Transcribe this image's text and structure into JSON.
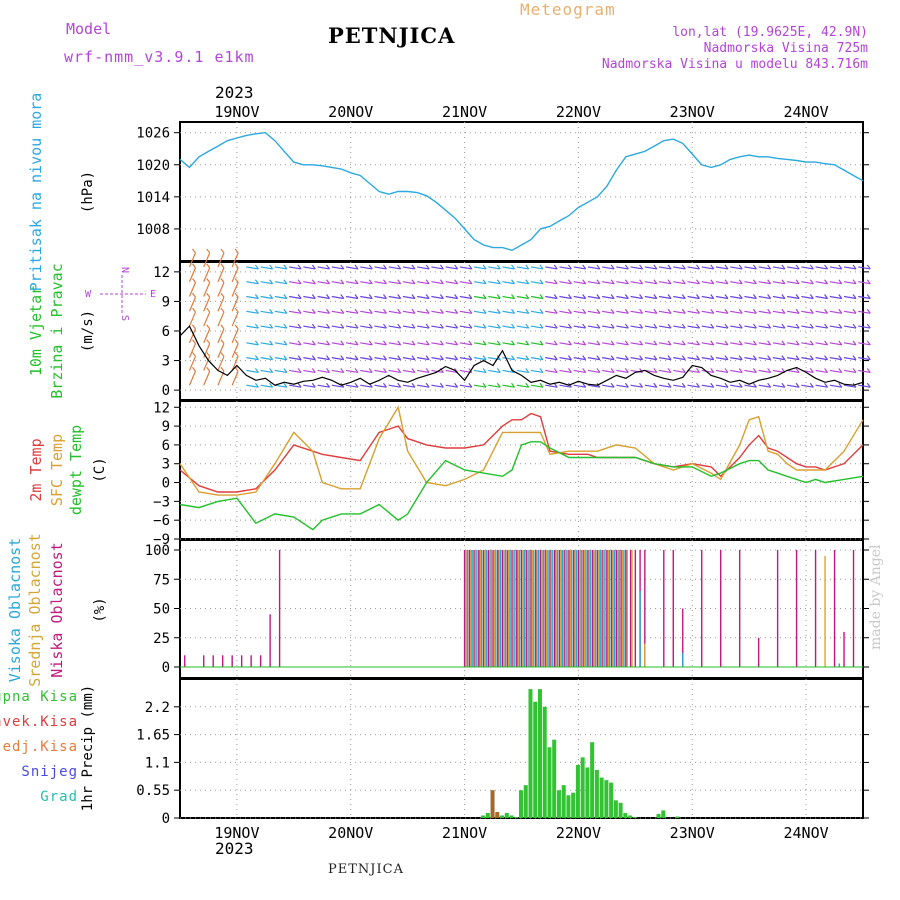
{
  "header": {
    "model_label": "Model",
    "model_name": "wrf-nmm_v3.9.1 e1km",
    "title": "PETNJICA",
    "meteogram": "Meteogram",
    "lonlat": "lon,lat (19.9625E, 42.9N)",
    "altitude": "Nadmorska Visina 725m",
    "altitude_model": "Nadmorska Visina u modelu 843.716m",
    "year": "2023",
    "footer": "PETNJICA",
    "credit": "made by Angel"
  },
  "colors": {
    "pressure": "#2aa8e0",
    "temp2m": "#e03c3c",
    "sfc": "#d9a030",
    "dew": "#22c02a",
    "niska": "#c0187e",
    "srednja": "#d4a636",
    "visoka": "#29a6d8",
    "precip": "#31c331",
    "zaledj": "#a0702a",
    "purple": "#b444d8",
    "brown": "#a26a2a"
  },
  "chart_data": [
    {
      "type": "line",
      "panel": "pressure",
      "ylabel": "Pritisak na nivou mora",
      "unit": "(hPa)",
      "x_unit": "hours since 18NOV 12:00",
      "yticks": [
        1008,
        1014,
        1020,
        1026
      ],
      "ylim": [
        1002,
        1028
      ],
      "series": [
        {
          "name": "Pritisak na nivou mora",
          "x": [
            0,
            2,
            4,
            6,
            8,
            10,
            12,
            14,
            16,
            18,
            20,
            22,
            24,
            26,
            28,
            30,
            32,
            34,
            36,
            38,
            40,
            42,
            44,
            46,
            48,
            50,
            52,
            54,
            56,
            58,
            60,
            62,
            64,
            66,
            68,
            70,
            72,
            74,
            76,
            78,
            80,
            82,
            84,
            86,
            88,
            90,
            92,
            94,
            96,
            98,
            100,
            102,
            104,
            106,
            108,
            110,
            112,
            114,
            116,
            118,
            120,
            122,
            124,
            126,
            128,
            130,
            132,
            134,
            136,
            138,
            140,
            142,
            144
          ],
          "values": [
            1021,
            1019.5,
            1021.5,
            1022.5,
            1023.5,
            1024.5,
            1025,
            1025.5,
            1025.8,
            1026,
            1024.5,
            1022.5,
            1020.5,
            1020,
            1020,
            1019.8,
            1019.5,
            1019.2,
            1018.5,
            1018,
            1016.5,
            1015,
            1014.5,
            1015,
            1015,
            1014.8,
            1014.2,
            1013,
            1011.5,
            1010,
            1008,
            1006,
            1005,
            1004.5,
            1004.5,
            1004,
            1005,
            1006,
            1008,
            1008.5,
            1009.5,
            1010.5,
            1012,
            1013,
            1014,
            1016,
            1019,
            1021.5,
            1022,
            1022.5,
            1023.5,
            1024.5,
            1024.8,
            1024,
            1022,
            1020,
            1019.5,
            1020,
            1021,
            1021.5,
            1021.8,
            1021.5,
            1021.5,
            1021.2,
            1021,
            1020.8,
            1020.5,
            1020.5,
            1020.2,
            1020,
            1019,
            1018,
            1017
          ]
        }
      ]
    },
    {
      "type": "line",
      "panel": "wind",
      "ylabel": "10m Vjetar Brzina i Pravac",
      "unit": "(m/s)",
      "x_unit": "hours since 18NOV 12:00",
      "compass": "N S W E",
      "yticks": [
        0,
        3,
        6,
        9,
        12
      ],
      "ylim": [
        -1,
        13
      ],
      "series": [
        {
          "name": "10m Vjetar",
          "x": [
            0,
            2,
            4,
            6,
            8,
            10,
            12,
            14,
            16,
            18,
            20,
            22,
            24,
            26,
            28,
            30,
            32,
            34,
            36,
            38,
            40,
            42,
            44,
            46,
            48,
            50,
            52,
            54,
            56,
            58,
            60,
            62,
            64,
            66,
            68,
            70,
            72,
            74,
            76,
            78,
            80,
            82,
            84,
            86,
            88,
            90,
            92,
            94,
            96,
            98,
            100,
            102,
            104,
            106,
            108,
            110,
            112,
            114,
            116,
            118,
            120,
            122,
            124,
            126,
            128,
            130,
            132,
            134,
            136,
            138,
            140,
            142,
            144
          ],
          "values": [
            5.5,
            6.5,
            4.5,
            3,
            2,
            1.5,
            2.5,
            1.5,
            1,
            1.2,
            0.5,
            0.8,
            0.6,
            0.9,
            1,
            1.3,
            1,
            0.5,
            0.8,
            1.2,
            0.6,
            1,
            1.5,
            1,
            0.8,
            1.2,
            1.5,
            1.8,
            2.4,
            2,
            1,
            2.5,
            3,
            2.5,
            4,
            2,
            1.5,
            0.8,
            1,
            0.6,
            0.8,
            0.5,
            0.9,
            0.6,
            0.5,
            1,
            1.5,
            1.2,
            1.8,
            2,
            1.5,
            1.2,
            1,
            1.3,
            2.5,
            2.3,
            1.5,
            1.2,
            0.8,
            1,
            0.6,
            1,
            1.2,
            1.5,
            2,
            2.3,
            1.8,
            1.2,
            0.8,
            1,
            0.6,
            0.5,
            0.8
          ]
        }
      ]
    },
    {
      "type": "line",
      "panel": "temperature",
      "ylabel": "2m Temp / SFC Temp / dewpt Temp",
      "unit": "(C)",
      "x_unit": "hours since 18NOV 12:00",
      "yticks": [
        -9,
        -6,
        -3,
        0,
        3,
        6,
        9,
        12
      ],
      "ylim": [
        -9,
        13
      ],
      "x": [
        0,
        4,
        8,
        12,
        16,
        20,
        24,
        28,
        30,
        34,
        38,
        42,
        46,
        48,
        52,
        56,
        60,
        64,
        68,
        70,
        72,
        74,
        76,
        78,
        82,
        86,
        88,
        92,
        96,
        100,
        104,
        108,
        112,
        114,
        118,
        120,
        122,
        124,
        126,
        128,
        130,
        132,
        134,
        136,
        140,
        144
      ],
      "series": [
        {
          "name": "2m Temp",
          "values": [
            2,
            -0.5,
            -1.5,
            -1.5,
            -1,
            2,
            6,
            5,
            4.5,
            4,
            3.5,
            8,
            9,
            7,
            6,
            5.5,
            5.5,
            6,
            9,
            10,
            10,
            11,
            10.5,
            5,
            4.5,
            4.5,
            4,
            4,
            4,
            3,
            2.5,
            3,
            2.5,
            1,
            4,
            6,
            7.5,
            5.5,
            5,
            4,
            3,
            2.5,
            2.5,
            2,
            3,
            6
          ]
        },
        {
          "name": "SFC Temp",
          "values": [
            3,
            -1.5,
            -2,
            -2,
            -1.5,
            3,
            8,
            5,
            0,
            -1,
            -1,
            7,
            12,
            5,
            0,
            -0.5,
            0.5,
            2,
            8,
            8,
            8,
            8,
            8,
            4.5,
            5,
            5,
            5,
            6,
            5.5,
            3,
            2,
            3,
            1.5,
            0.5,
            6,
            10,
            10.5,
            5,
            4.5,
            3,
            2,
            2,
            2,
            2,
            5,
            10
          ]
        },
        {
          "name": "dewpt Temp",
          "values": [
            -3.5,
            -4,
            -3,
            -2.5,
            -6.5,
            -5,
            -5.5,
            -7.5,
            -6,
            -5,
            -5,
            -3.5,
            -6,
            -5,
            0,
            3.5,
            2,
            1.5,
            1,
            2,
            6,
            6.5,
            6.5,
            5.5,
            4,
            4,
            4,
            4,
            4,
            3,
            2.5,
            2.5,
            1,
            1.5,
            3,
            3.5,
            3.5,
            2,
            1.5,
            1,
            0.5,
            0,
            0.5,
            0,
            0.5,
            1
          ]
        }
      ]
    },
    {
      "type": "bar",
      "panel": "clouds",
      "ylabel": "Visoka Oblacnost / Srednja Oblacnost / Niska Oblacnost",
      "unit": "(%)",
      "yticks": [
        0,
        25,
        50,
        75,
        100
      ],
      "ylim": [
        0,
        100
      ],
      "x_unit": "hours since 18NOV 12:00",
      "series": [
        {
          "name": "Niska Oblacnost",
          "x": [
            1,
            5,
            7,
            9,
            11,
            13,
            15,
            17,
            19,
            21
          ],
          "values": [
            10,
            10,
            10,
            10,
            10,
            10,
            10,
            10,
            45,
            100
          ],
          "x_range": [
            60,
            98
          ],
          "range_value": 100,
          "extra_x": [
            102,
            104,
            106,
            110,
            114,
            118,
            122,
            126,
            130,
            134,
            138,
            140,
            142
          ],
          "extra_values": [
            100,
            100,
            50,
            100,
            100,
            100,
            25,
            100,
            100,
            100,
            100,
            30,
            100
          ]
        },
        {
          "name": "Srednja Oblacnost",
          "x_range": [
            60,
            96
          ],
          "range_value": 100,
          "extra_x": [
            98,
            136
          ],
          "extra_values": [
            20,
            95
          ]
        },
        {
          "name": "Visoka Oblacnost",
          "x_range": [
            60,
            94
          ],
          "range_value": 100,
          "extra_x": [
            97,
            106,
            139
          ],
          "extra_values": [
            65,
            12,
            3
          ]
        }
      ]
    },
    {
      "type": "bar",
      "panel": "precip",
      "ylabel": "1hr Precip",
      "unit": "(mm)",
      "x_unit": "hours since 18NOV 12:00",
      "yticks": [
        0,
        0.55,
        1.1,
        1.65,
        2.2
      ],
      "ylim": [
        0,
        2.75
      ],
      "series": [
        {
          "name": "Ukupna Kisa",
          "x": [
            64,
            65,
            67,
            68,
            69,
            70,
            71,
            72,
            73,
            74,
            75,
            76,
            77,
            78,
            79,
            80,
            81,
            82,
            83,
            84,
            85,
            86,
            87,
            88,
            89,
            90,
            91,
            92,
            93,
            94,
            95,
            96,
            101,
            102,
            105
          ],
          "values": [
            0.05,
            0.1,
            0.05,
            0.05,
            0.1,
            0.05,
            0.02,
            0.55,
            0.65,
            2.55,
            2.3,
            2.55,
            2.2,
            1.4,
            1.55,
            0.55,
            0.65,
            0.45,
            0.5,
            1.05,
            1.2,
            1,
            1.5,
            0.95,
            0.8,
            0.75,
            0.7,
            0.35,
            0.3,
            0.1,
            0.05,
            0.02,
            0.08,
            0.15,
            0.03
          ]
        },
        {
          "name": "Zaledj.Kisa",
          "x": [
            66,
            67
          ],
          "values": [
            0.55,
            0.12
          ]
        }
      ],
      "legend": [
        "Ukupna Kisa",
        "Konvek.Kisa",
        "Zaledj.Kisa",
        "Snijeg",
        "Grad"
      ]
    }
  ],
  "xaxis": {
    "labels": [
      "19NOV",
      "20NOV",
      "21NOV",
      "22NOV",
      "23NOV",
      "24NOV"
    ],
    "label_hours": [
      12,
      36,
      60,
      84,
      108,
      132
    ],
    "range_hours": [
      0,
      144
    ]
  }
}
